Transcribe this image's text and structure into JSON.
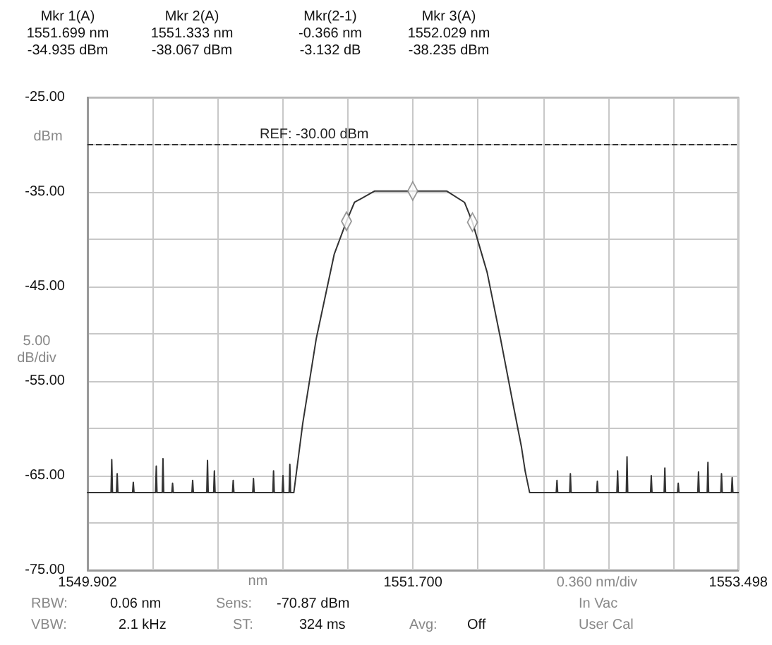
{
  "chart_data": {
    "type": "line",
    "xlabel": "nm",
    "ylabel": "dBm",
    "marker": "none",
    "line_style": "solid",
    "grid": true,
    "xlim": [
      1549.902,
      1553.498
    ],
    "xticks": [
      {
        "value": 1549.902,
        "label": "1549.902"
      },
      {
        "value": 1550.262,
        "label": null
      },
      {
        "value": 1550.621,
        "label": null
      },
      {
        "value": 1550.981,
        "label": null
      },
      {
        "value": 1551.34,
        "label": null
      },
      {
        "value": 1551.7,
        "label": "1551.700"
      },
      {
        "value": 1552.06,
        "label": null
      },
      {
        "value": 1552.419,
        "label": null
      },
      {
        "value": 1552.779,
        "label": null
      },
      {
        "value": 1553.138,
        "label": null
      },
      {
        "value": 1553.498,
        "label": "1553.498"
      }
    ],
    "ylim": [
      -75,
      -25
    ],
    "yticks": [
      {
        "value": -75,
        "label": "-75.00"
      },
      {
        "value": -70,
        "label": null
      },
      {
        "value": -65,
        "label": "-65.00"
      },
      {
        "value": -60,
        "label": null
      },
      {
        "value": -55,
        "label": "-55.00"
      },
      {
        "value": -50,
        "label": null
      },
      {
        "value": -45,
        "label": "-45.00"
      },
      {
        "value": -40,
        "label": null
      },
      {
        "value": -35,
        "label": "-35.00"
      },
      {
        "value": -30,
        "label": null
      },
      {
        "value": -25,
        "label": "-25.00"
      }
    ],
    "ref_lines": [
      {
        "axis": "y",
        "value": -30,
        "label": "REF: -30.00 dBm",
        "color": "#333333",
        "line_style": "dashed"
      }
    ],
    "series": [
      {
        "color": "#333333",
        "x": [
          1549.902,
          1550.032,
          1550.036,
          1550.04,
          1550.062,
          1550.066,
          1550.07,
          1550.151,
          1550.155,
          1550.159,
          1550.278,
          1550.282,
          1550.286,
          1550.315,
          1550.319,
          1550.323,
          1550.368,
          1550.372,
          1550.376,
          1550.479,
          1550.483,
          1550.487,
          1550.561,
          1550.565,
          1550.569,
          1550.599,
          1550.603,
          1550.607,
          1550.703,
          1550.707,
          1550.711,
          1550.815,
          1550.819,
          1550.823,
          1550.926,
          1550.93,
          1550.934,
          1550.978,
          1550.982,
          1550.986,
          1551.016,
          1551.02,
          1551.024,
          1551.042,
          1551.091,
          1551.166,
          1551.265,
          1551.333,
          1551.377,
          1551.489,
          1551.699,
          1551.886,
          1551.985,
          1552.029,
          1552.11,
          1552.184,
          1552.254,
          1552.3,
          1552.32,
          1552.345,
          1552.492,
          1552.496,
          1552.5,
          1552.566,
          1552.57,
          1552.574,
          1552.715,
          1552.719,
          1552.723,
          1552.827,
          1552.831,
          1552.835,
          1552.879,
          1552.883,
          1552.887,
          1553.013,
          1553.017,
          1553.021,
          1553.088,
          1553.092,
          1553.096,
          1553.162,
          1553.166,
          1553.17,
          1553.274,
          1553.278,
          1553.282,
          1553.326,
          1553.33,
          1553.334,
          1553.401,
          1553.405,
          1553.409,
          1553.46,
          1553.464,
          1553.468,
          1553.498
        ],
        "values": [
          -66.8,
          -66.8,
          -63.3,
          -66.8,
          -66.8,
          -64.8,
          -66.8,
          -66.8,
          -65.7,
          -66.8,
          -66.8,
          -64.0,
          -66.8,
          -66.8,
          -63.2,
          -66.8,
          -66.8,
          -65.8,
          -66.8,
          -66.8,
          -65.5,
          -66.8,
          -66.8,
          -63.4,
          -66.8,
          -66.8,
          -64.5,
          -66.8,
          -66.8,
          -65.5,
          -66.8,
          -66.8,
          -65.3,
          -66.8,
          -66.8,
          -64.5,
          -66.8,
          -66.8,
          -65.0,
          -66.8,
          -66.8,
          -63.8,
          -66.8,
          -66.8,
          -59.5,
          -50.5,
          -41.6,
          -38.1,
          -36.1,
          -34.9,
          -34.9,
          -34.9,
          -36.1,
          -38.2,
          -43.5,
          -50.5,
          -57.5,
          -62.0,
          -64.5,
          -66.8,
          -66.8,
          -65.5,
          -66.8,
          -66.8,
          -64.8,
          -66.8,
          -66.8,
          -65.6,
          -66.8,
          -66.8,
          -64.5,
          -66.8,
          -66.8,
          -63.0,
          -66.8,
          -66.8,
          -65.0,
          -66.8,
          -66.8,
          -64.2,
          -66.8,
          -66.8,
          -65.8,
          -66.8,
          -66.8,
          -64.6,
          -66.8,
          -66.8,
          -63.6,
          -66.8,
          -66.8,
          -64.8,
          -66.8,
          -66.8,
          -65.2,
          -66.8,
          -66.8
        ]
      },
      {
        "type": "scatter",
        "marker": "diamond",
        "color": "#808080",
        "x": [
          1551.699,
          1551.333,
          1552.029
        ],
        "values": [
          -34.9,
          -38.1,
          -38.2
        ]
      }
    ],
    "annotations": [
      "Mkr 1(A)\n1551.699 nm\n-34.935 dBm",
      "Mkr 2(A)\n1551.333 nm\n-38.067 dBm",
      "Mkr(2-1)\n-0.366 nm\n-3.132 dB",
      "Mkr 3(A)\n1552.029 nm\n-38.235 dBm",
      "RBW:",
      "0.06 nm",
      "Sens:",
      "-70.87 dBm",
      "In Vac",
      "VBW:",
      "2.1 kHz",
      "ST:",
      "324 ms",
      "Avg:",
      "Off",
      "User Cal",
      "0.360 nm/div",
      "5.00\ndB/div"
    ]
  }
}
